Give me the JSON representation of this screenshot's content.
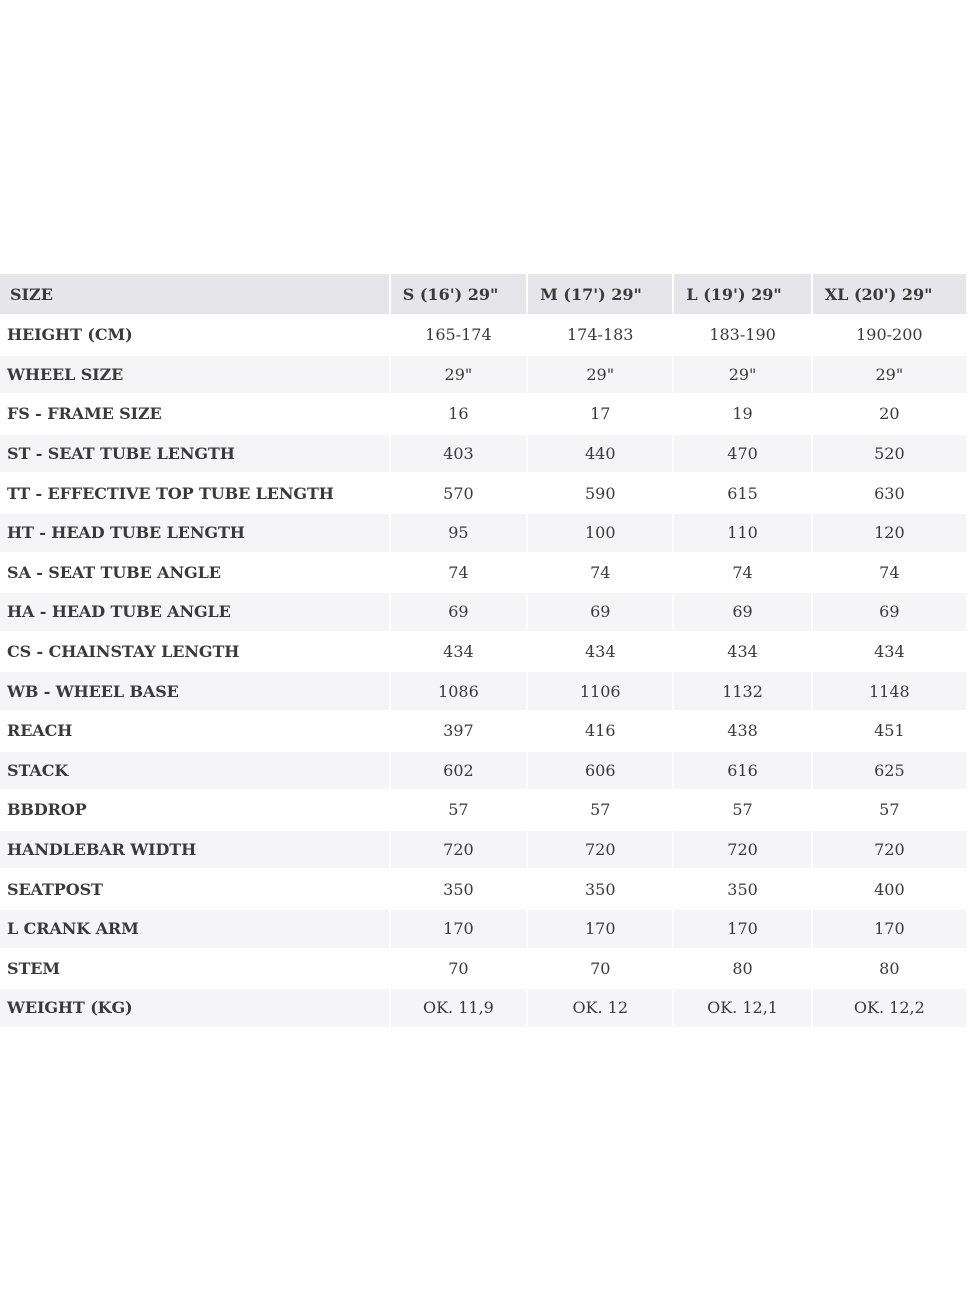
{
  "table": {
    "header": {
      "label": "SIZE",
      "sizes": [
        "S (16') 29\"",
        "M (17') 29\"",
        "L (19') 29\"",
        "XL (20') 29\""
      ]
    },
    "rows": [
      {
        "label": "HEIGHT (CM)",
        "values": [
          "165-174",
          "174-183",
          "183-190",
          "190-200"
        ]
      },
      {
        "label": "WHEEL SIZE",
        "values": [
          "29\"",
          "29\"",
          "29\"",
          "29\""
        ]
      },
      {
        "label": "FS - FRAME SIZE",
        "values": [
          "16",
          "17",
          "19",
          "20"
        ]
      },
      {
        "label": "ST - SEAT TUBE LENGTH",
        "values": [
          "403",
          "440",
          "470",
          "520"
        ]
      },
      {
        "label": "TT - EFFECTIVE TOP TUBE LENGTH",
        "values": [
          "570",
          "590",
          "615",
          "630"
        ]
      },
      {
        "label": "HT - HEAD TUBE LENGTH",
        "values": [
          "95",
          "100",
          "110",
          "120"
        ]
      },
      {
        "label": "SA - SEAT TUBE ANGLE",
        "values": [
          "74",
          "74",
          "74",
          "74"
        ]
      },
      {
        "label": "HA - HEAD TUBE ANGLE",
        "values": [
          "69",
          "69",
          "69",
          "69"
        ]
      },
      {
        "label": "CS - CHAINSTAY LENGTH",
        "values": [
          "434",
          "434",
          "434",
          "434"
        ]
      },
      {
        "label": "WB - WHEEL BASE",
        "values": [
          "1086",
          "1106",
          "1132",
          "1148"
        ]
      },
      {
        "label": "REACH",
        "values": [
          "397",
          "416",
          "438",
          "451"
        ]
      },
      {
        "label": "STACK",
        "values": [
          "602",
          "606",
          "616",
          "625"
        ]
      },
      {
        "label": "BBDROP",
        "values": [
          "57",
          "57",
          "57",
          "57"
        ]
      },
      {
        "label": "HANDLEBAR WIDTH",
        "values": [
          "720",
          "720",
          "720",
          "720"
        ]
      },
      {
        "label": "SEATPOST",
        "values": [
          "350",
          "350",
          "350",
          "400"
        ]
      },
      {
        "label": "L CRANK ARM",
        "values": [
          "170",
          "170",
          "170",
          "170"
        ]
      },
      {
        "label": "STEM",
        "values": [
          "70",
          "70",
          "80",
          "80"
        ]
      },
      {
        "label": "WEIGHT (KG)",
        "values": [
          "OK. 11,9",
          "OK. 12",
          "OK. 12,1",
          "OK. 12,2"
        ]
      }
    ]
  },
  "colors": {
    "header_bg": "#e6e6ea",
    "row_alt_bg": "#f5f5f7",
    "text": "#3a3a3a"
  }
}
